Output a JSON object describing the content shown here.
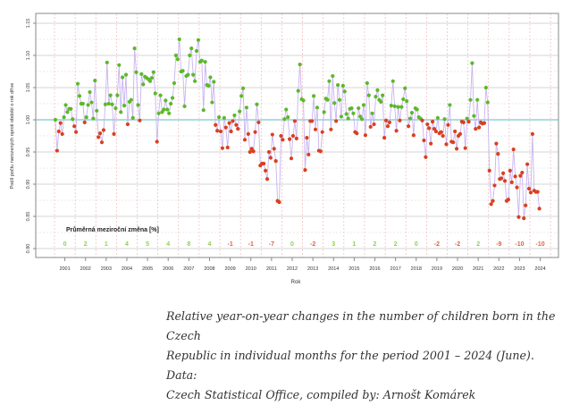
{
  "chart_data": {
    "type": "scatter",
    "title": "",
    "xlabel": "Rok",
    "ylabel": "Podíl počtu narozených oproti období o rok dříve",
    "ylim": [
      0.8,
      1.15
    ],
    "yticks": [
      "0.80",
      "0.85",
      "0.90",
      "0.95",
      "1.00",
      "1.05",
      "1.10",
      "1.15"
    ],
    "reference_line": 1.0,
    "years": [
      "2001",
      "2002",
      "2003",
      "2004",
      "2005",
      "2006",
      "2007",
      "2008",
      "2009",
      "2010",
      "2011",
      "2012",
      "2013",
      "2014",
      "2015",
      "2016",
      "2017",
      "2018",
      "2019",
      "2020",
      "2021",
      "2022",
      "2023",
      "2024"
    ],
    "annotation_title": "Průměrná meziroční změna [%]",
    "yearly_avg_change": [
      "0",
      "2",
      "1",
      "4",
      "5",
      "4",
      "8",
      "4",
      "-1",
      "-1",
      "-7",
      "0",
      "-2",
      "3",
      "1",
      "2",
      "2",
      "0",
      "-2",
      "-2",
      "2",
      "-9",
      "-10",
      "-10"
    ],
    "monthly_values": [
      [
        1.0,
        0.952,
        0.982,
        0.995,
        0.978,
        1.004,
        1.023,
        1.012,
        1.017,
        1.017,
        1.001,
        0.99
      ],
      [
        0.981,
        1.056,
        1.037,
        1.025,
        1.025,
        0.996,
        1.004,
        1.023,
        1.043,
        1.027,
        1.002,
        1.061
      ],
      [
        1.014,
        0.973,
        0.979,
        0.965,
        0.984,
        1.024,
        1.089,
        1.025,
        1.038,
        1.024,
        0.978,
        1.018
      ],
      [
        1.038,
        1.085,
        1.012,
        1.066,
        1.022,
        1.07,
        0.993,
        1.028,
        1.031,
        1.003,
        1.111,
        1.074
      ],
      [
        1.023,
        0.999,
        1.071,
        1.055,
        1.067,
        1.065,
        1.063,
        1.06,
        1.065,
        1.074,
        1.041,
        0.966
      ],
      [
        1.01,
        1.038,
        1.012,
        1.016,
        1.03,
        1.016,
        1.01,
        1.025,
        1.034,
        1.057,
        1.1,
        1.094
      ],
      [
        1.125,
        1.075,
        1.076,
        1.021,
        1.068,
        1.07,
        1.1,
        1.111,
        1.07,
        1.06,
        1.107,
        1.124
      ],
      [
        1.09,
        1.092,
        1.015,
        1.09,
        1.054,
        1.053,
        1.066,
        1.027,
        1.059,
        0.992,
        0.983,
        1.004
      ],
      [
        0.982,
        0.956,
        1.003,
        0.988,
        0.957,
        0.995,
        0.982,
        0.998,
        1.007,
        0.992,
        0.986,
        1.013
      ],
      [
        1.037,
        1.049,
        0.969,
        1.019,
        0.978,
        0.95,
        0.955,
        0.951,
        0.981,
        1.024,
        0.996,
        0.929
      ],
      [
        0.932,
        0.932,
        0.921,
        0.908,
        0.95,
        0.941,
        0.977,
        0.955,
        0.936,
        0.874,
        0.872,
        0.975
      ],
      [
        0.969,
        1.001,
        1.016,
        1.004,
        0.97,
        0.94,
        0.975,
        0.998,
        0.971,
        1.045,
        1.086,
        1.032
      ],
      [
        1.03,
        0.922,
        0.972,
        0.946,
        0.998,
        0.998,
        1.037,
        0.985,
        1.019,
        0.952,
        0.951,
        0.981
      ],
      [
        1.012,
        1.033,
        1.031,
        1.06,
        0.985,
        1.068,
        1.026,
        0.998,
        1.054,
        1.031,
        1.005,
        1.053
      ],
      [
        1.044,
        1.009,
        1.002,
        1.017,
        1.018,
        1.01,
        0.981,
        0.979,
        1.018,
        1.005,
        1.001,
        1.023
      ],
      [
        0.976,
        1.057,
        1.038,
        0.989,
        1.01,
        0.993,
        1.036,
        1.046,
        1.031,
        1.028,
        1.038,
        0.972
      ],
      [
        0.999,
        0.99,
        0.996,
        1.022,
        1.06,
        1.021,
        0.983,
        1.02,
        0.999,
        1.02,
        1.032,
        1.049
      ],
      [
        1.029,
        0.99,
        1.002,
        1.011,
        0.976,
        1.018,
        1.016,
        1.004,
        1.002,
        0.999,
        0.968,
        0.942
      ],
      [
        0.993,
        0.987,
        0.963,
        0.997,
        0.986,
        0.982,
        1.003,
        0.979,
        0.981,
        0.975,
        1.001,
        0.962
      ],
      [
        0.992,
        1.023,
        0.966,
        0.965,
        0.982,
        0.955,
        0.975,
        0.978,
        0.997,
        0.996,
        0.956,
        1.002
      ],
      [
        0.997,
        1.031,
        1.088,
        1.006,
        0.986,
        1.031,
        0.988,
        0.996,
        0.994,
        0.995,
        1.05,
        1.027
      ],
      [
        0.921,
        0.869,
        0.874,
        0.898,
        0.963,
        0.947,
        0.908,
        0.909,
        0.917,
        0.905,
        0.874,
        0.876
      ],
      [
        0.921,
        0.903,
        0.954,
        0.912,
        0.895,
        0.849,
        0.913,
        0.918,
        0.847,
        0.867,
        0.931,
        0.893
      ],
      [
        0.887,
        0.978,
        0.89,
        0.888,
        0.888,
        0.862
      ]
    ],
    "colors": {
      "above": "#5cb82a",
      "below": "#d9401f",
      "line": "#c8b4ef",
      "reference": "#7cc6d3",
      "grid": "#dddddd",
      "year_divider": "#f2b8b8"
    }
  },
  "caption": {
    "line1": "Relative year-on-year changes in the number of children born in the Czech",
    "line2": "Republic in individual months for the period 2001 – 2024 (June). Data:",
    "line3": "Czech Statistical Office, compiled by: Arnošt Komárek"
  }
}
